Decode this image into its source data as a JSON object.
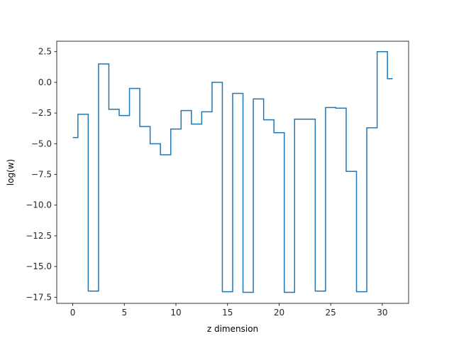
{
  "chart_data": {
    "type": "line",
    "drawstyle": "steps-mid",
    "title": "",
    "xlabel": "z dimension",
    "ylabel": "log(w)",
    "xlim": [
      -1.55,
      32.55
    ],
    "ylim": [
      -18.0,
      3.35
    ],
    "grid": false,
    "x_ticks": [
      0,
      5,
      10,
      15,
      20,
      25,
      30
    ],
    "y_ticks": [
      2.5,
      0.0,
      -2.5,
      -5.0,
      -7.5,
      -10.0,
      -12.5,
      -15.0,
      -17.5
    ],
    "y_tick_labels": [
      "2.5",
      "0.0",
      "−2.5",
      "−5.0",
      "−7.5",
      "−10.0",
      "−12.5",
      "−15.0",
      "−17.5"
    ],
    "series": [
      {
        "color": "#1f77b4",
        "x": [
          0,
          1,
          2,
          3,
          4,
          5,
          6,
          7,
          8,
          9,
          10,
          11,
          12,
          13,
          14,
          15,
          16,
          17,
          18,
          19,
          20,
          21,
          22,
          23,
          24,
          25,
          26,
          27,
          28,
          29,
          30,
          31
        ],
        "y": [
          -4.5,
          -2.6,
          -17.0,
          1.5,
          -2.2,
          -2.7,
          -0.5,
          -3.6,
          -5.0,
          -5.9,
          -3.8,
          -2.3,
          -3.4,
          -2.4,
          0.0,
          -17.05,
          -0.9,
          -17.1,
          -1.35,
          -3.05,
          -4.1,
          -17.1,
          -3.0,
          -3.0,
          -17.0,
          -2.05,
          -2.1,
          -7.25,
          -17.05,
          -3.7,
          2.5,
          0.3
        ]
      }
    ]
  }
}
